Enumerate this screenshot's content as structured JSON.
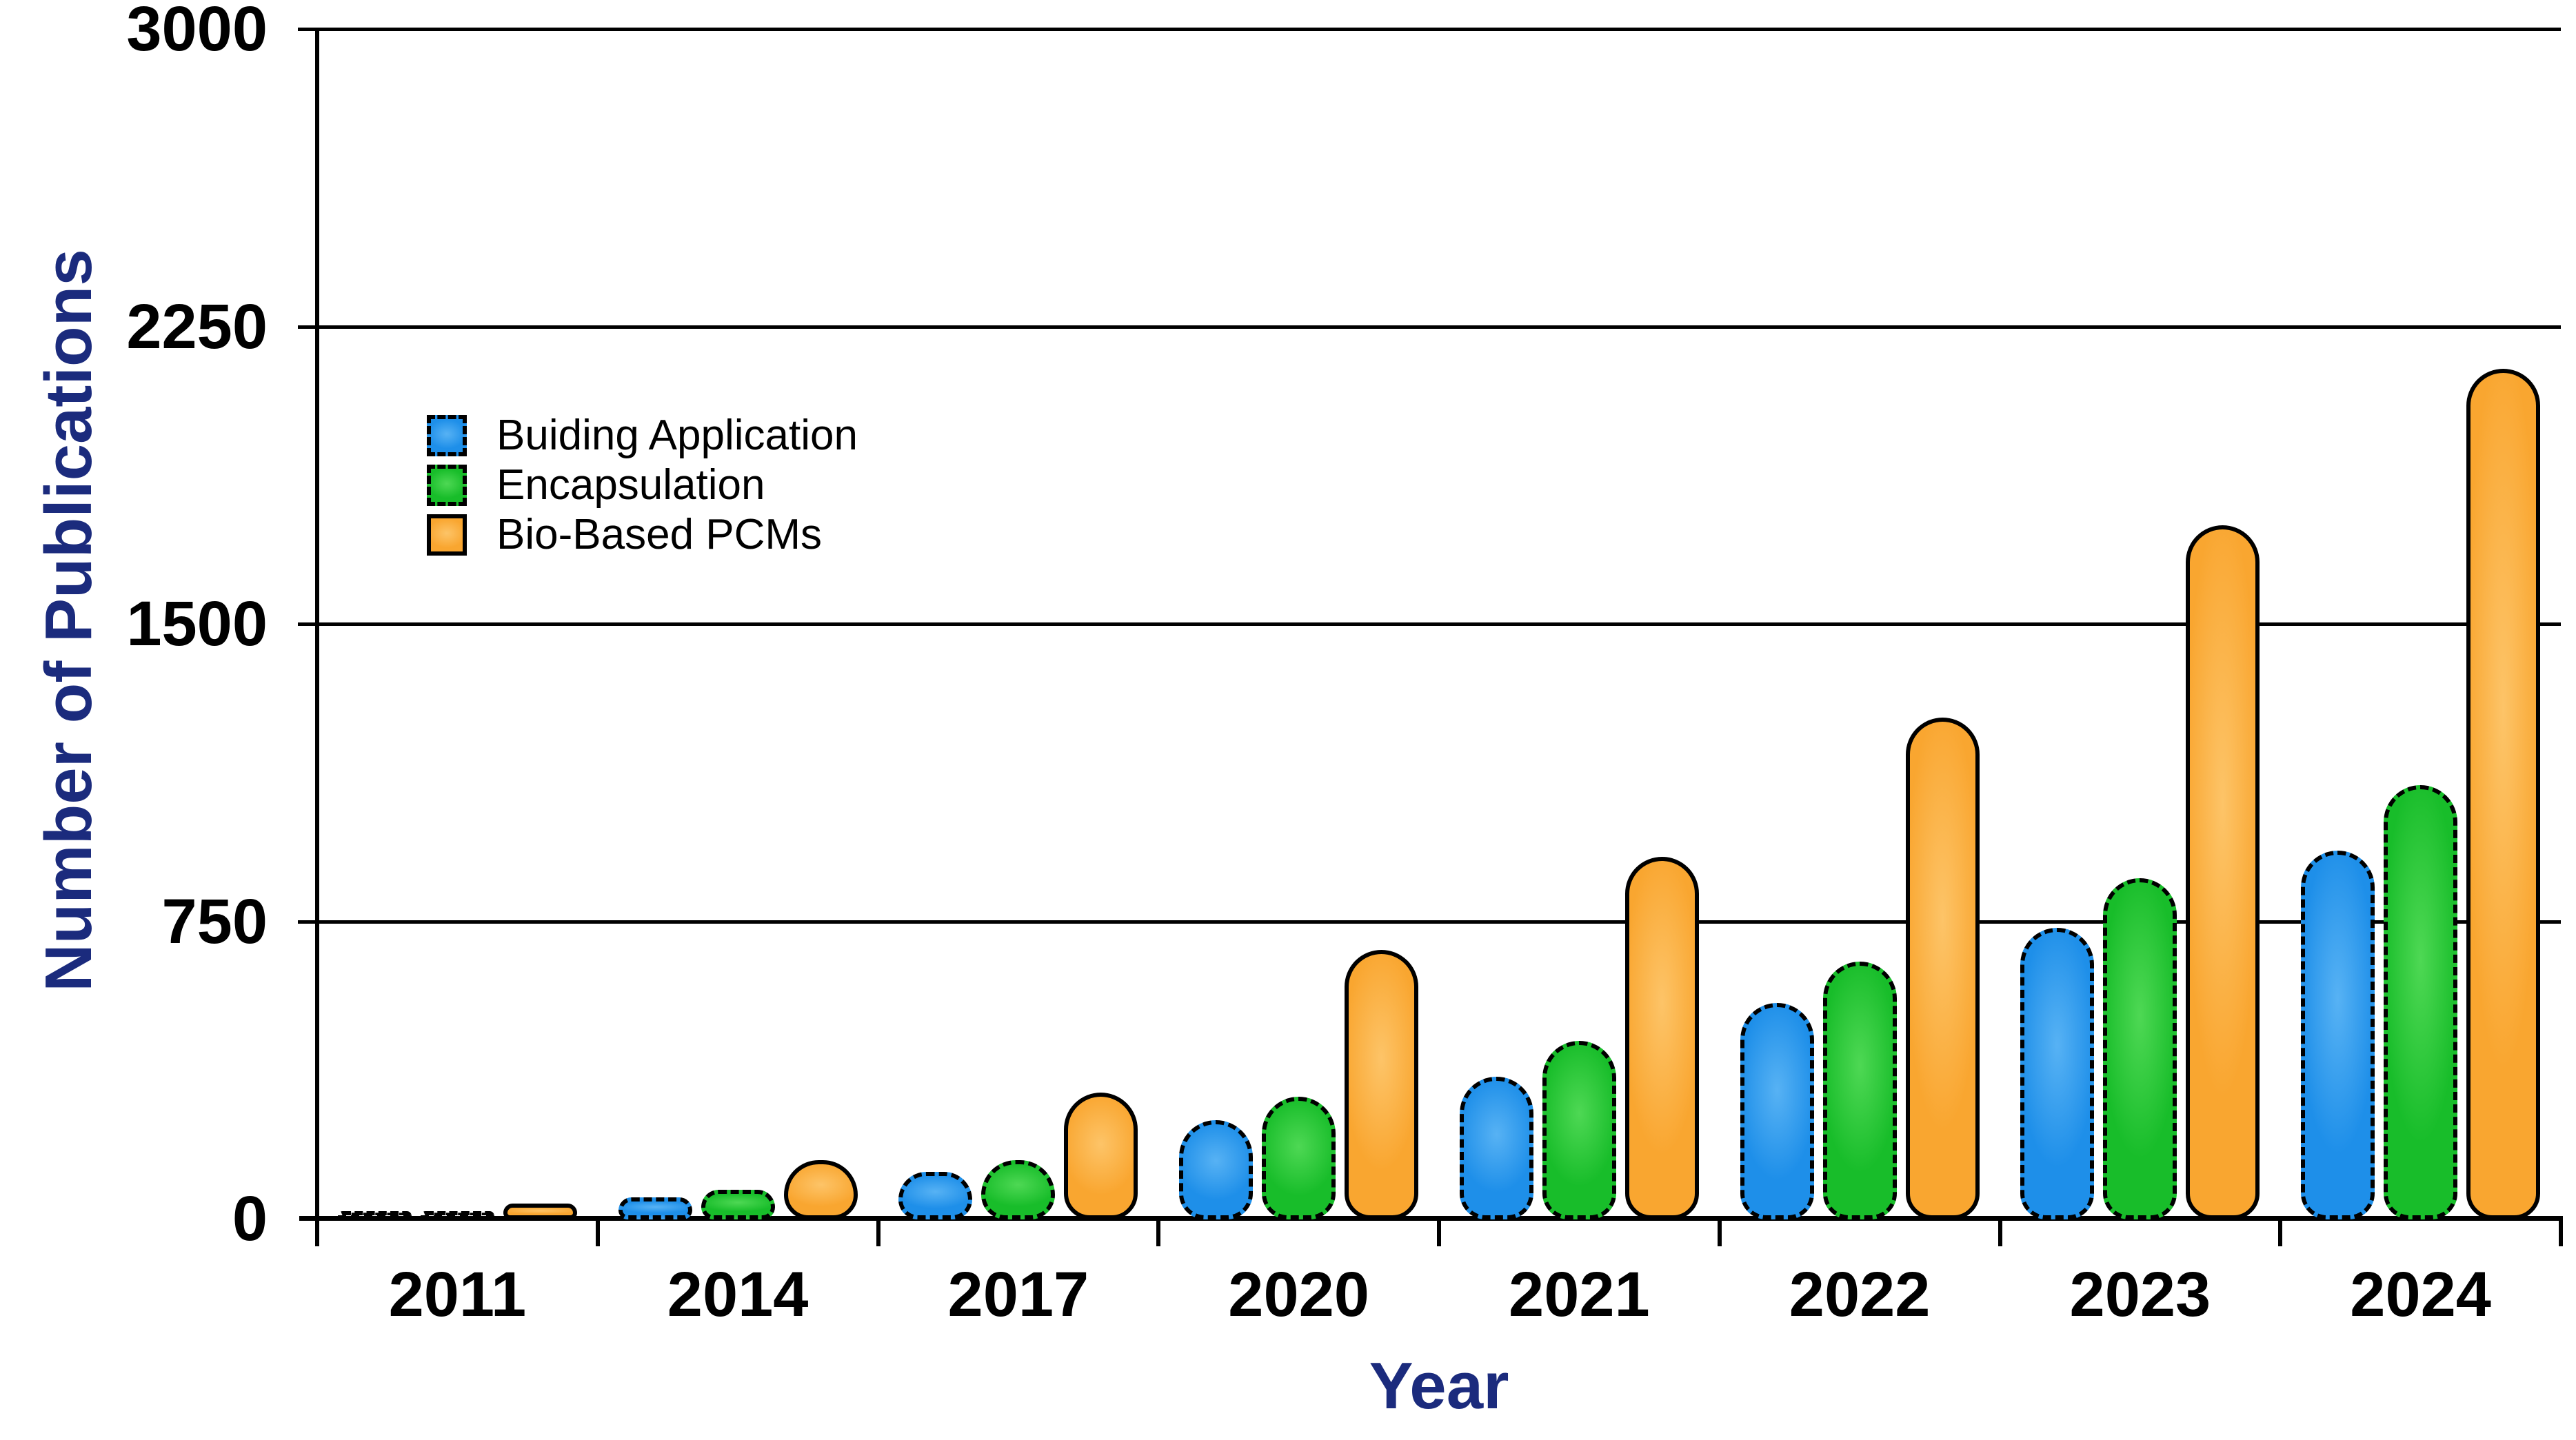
{
  "chart_data": {
    "type": "bar",
    "title": "",
    "xlabel": "Year",
    "ylabel": "Number of Publications",
    "categories": [
      "2011",
      "2014",
      "2017",
      "2020",
      "2021",
      "2022",
      "2023",
      "2024"
    ],
    "series": [
      {
        "name": "Buiding Application",
        "key": "building-application",
        "color": "#1e8fe9",
        "color_light": "#57b2f4",
        "border_style": "dashed",
        "values": [
          10,
          55,
          120,
          250,
          360,
          545,
          735,
          930
        ]
      },
      {
        "name": "Encapsulation",
        "key": "encapsulation",
        "color": "#18bd2a",
        "color_light": "#4ed854",
        "border_style": "dashed",
        "values": [
          20,
          75,
          150,
          310,
          450,
          650,
          860,
          1095
        ]
      },
      {
        "name": "Bio-Based PCMs",
        "key": "bio-based-pcms",
        "color": "#f9a630",
        "color_light": "#fdc468",
        "border_style": "solid",
        "values": [
          40,
          150,
          320,
          680,
          915,
          1265,
          1750,
          2145
        ]
      }
    ],
    "ylim": [
      0,
      3000
    ],
    "yticks": [
      0,
      750,
      1500,
      2250,
      3000
    ],
    "grid": true,
    "legend_position": "upper-left-inside",
    "axis_title_color": "#1b2b7d",
    "tick_label_color": "#000000",
    "bar_border_color": "#000000"
  }
}
